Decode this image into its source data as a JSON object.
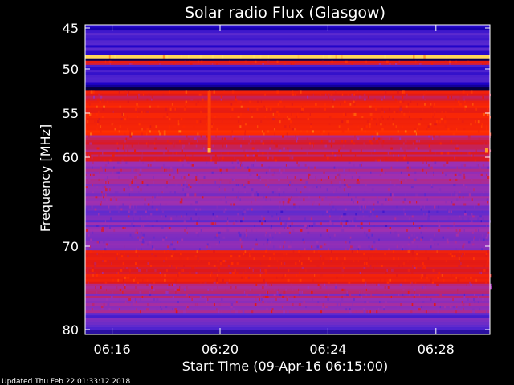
{
  "chart_data": {
    "type": "heatmap",
    "title": "Solar radio Flux (Glasgow)",
    "xlabel": "Start Time (09-Apr-16 06:15:00)",
    "ylabel": "Frequency [MHz]",
    "x_ticks": [
      "06:16",
      "06:20",
      "06:24",
      "06:28"
    ],
    "x_tick_minutes": [
      16,
      20,
      24,
      28
    ],
    "xlim_minutes": [
      15.0,
      30.0
    ],
    "y_ticks": [
      45,
      50,
      55,
      60,
      70,
      80
    ],
    "ylim": [
      44.5,
      80.0
    ],
    "y_reversed": true,
    "y_scale": "nonlinear (reciprocal-like)",
    "colormap": [
      "#000014",
      "#1a00c8",
      "#5a2ad0",
      "#a030b0",
      "#e01818",
      "#ff2a00",
      "#ff7a10",
      "#ffe060"
    ],
    "bands": [
      {
        "f1": 44.5,
        "f2": 45.3,
        "level": 0.15
      },
      {
        "f1": 45.3,
        "f2": 48.3,
        "level": 0.22
      },
      {
        "f1": 48.3,
        "f2": 48.7,
        "level": 0.92
      },
      {
        "f1": 48.7,
        "f2": 49.0,
        "level": 0.08
      },
      {
        "f1": 49.0,
        "f2": 49.5,
        "level": 0.6
      },
      {
        "f1": 49.5,
        "f2": 51.5,
        "level": 0.2
      },
      {
        "f1": 51.5,
        "f2": 52.4,
        "level": 0.1
      },
      {
        "f1": 52.4,
        "f2": 52.8,
        "level": 0.62
      },
      {
        "f1": 52.8,
        "f2": 53.6,
        "level": 0.52
      },
      {
        "f1": 53.6,
        "f2": 57.5,
        "level": 0.66
      },
      {
        "f1": 57.5,
        "f2": 60.5,
        "level": 0.5
      },
      {
        "f1": 60.5,
        "f2": 66.0,
        "level": 0.4
      },
      {
        "f1": 66.0,
        "f2": 70.5,
        "level": 0.36
      },
      {
        "f1": 70.5,
        "f2": 74.5,
        "level": 0.6
      },
      {
        "f1": 74.5,
        "f2": 78.0,
        "level": 0.42
      },
      {
        "f1": 78.0,
        "f2": 80.0,
        "level": 0.3
      }
    ],
    "bursts": [
      {
        "t": 19.6,
        "f1": 52.5,
        "f2": 59.5,
        "level": 0.75
      },
      {
        "t": 19.6,
        "f1": 59.0,
        "f2": 59.5,
        "level": 0.95
      },
      {
        "t": 30.0,
        "f1": 59.0,
        "f2": 59.5,
        "level": 0.9
      }
    ]
  },
  "footer": {
    "updated": "Updated Thu Feb 22 01:33:12 2018"
  }
}
